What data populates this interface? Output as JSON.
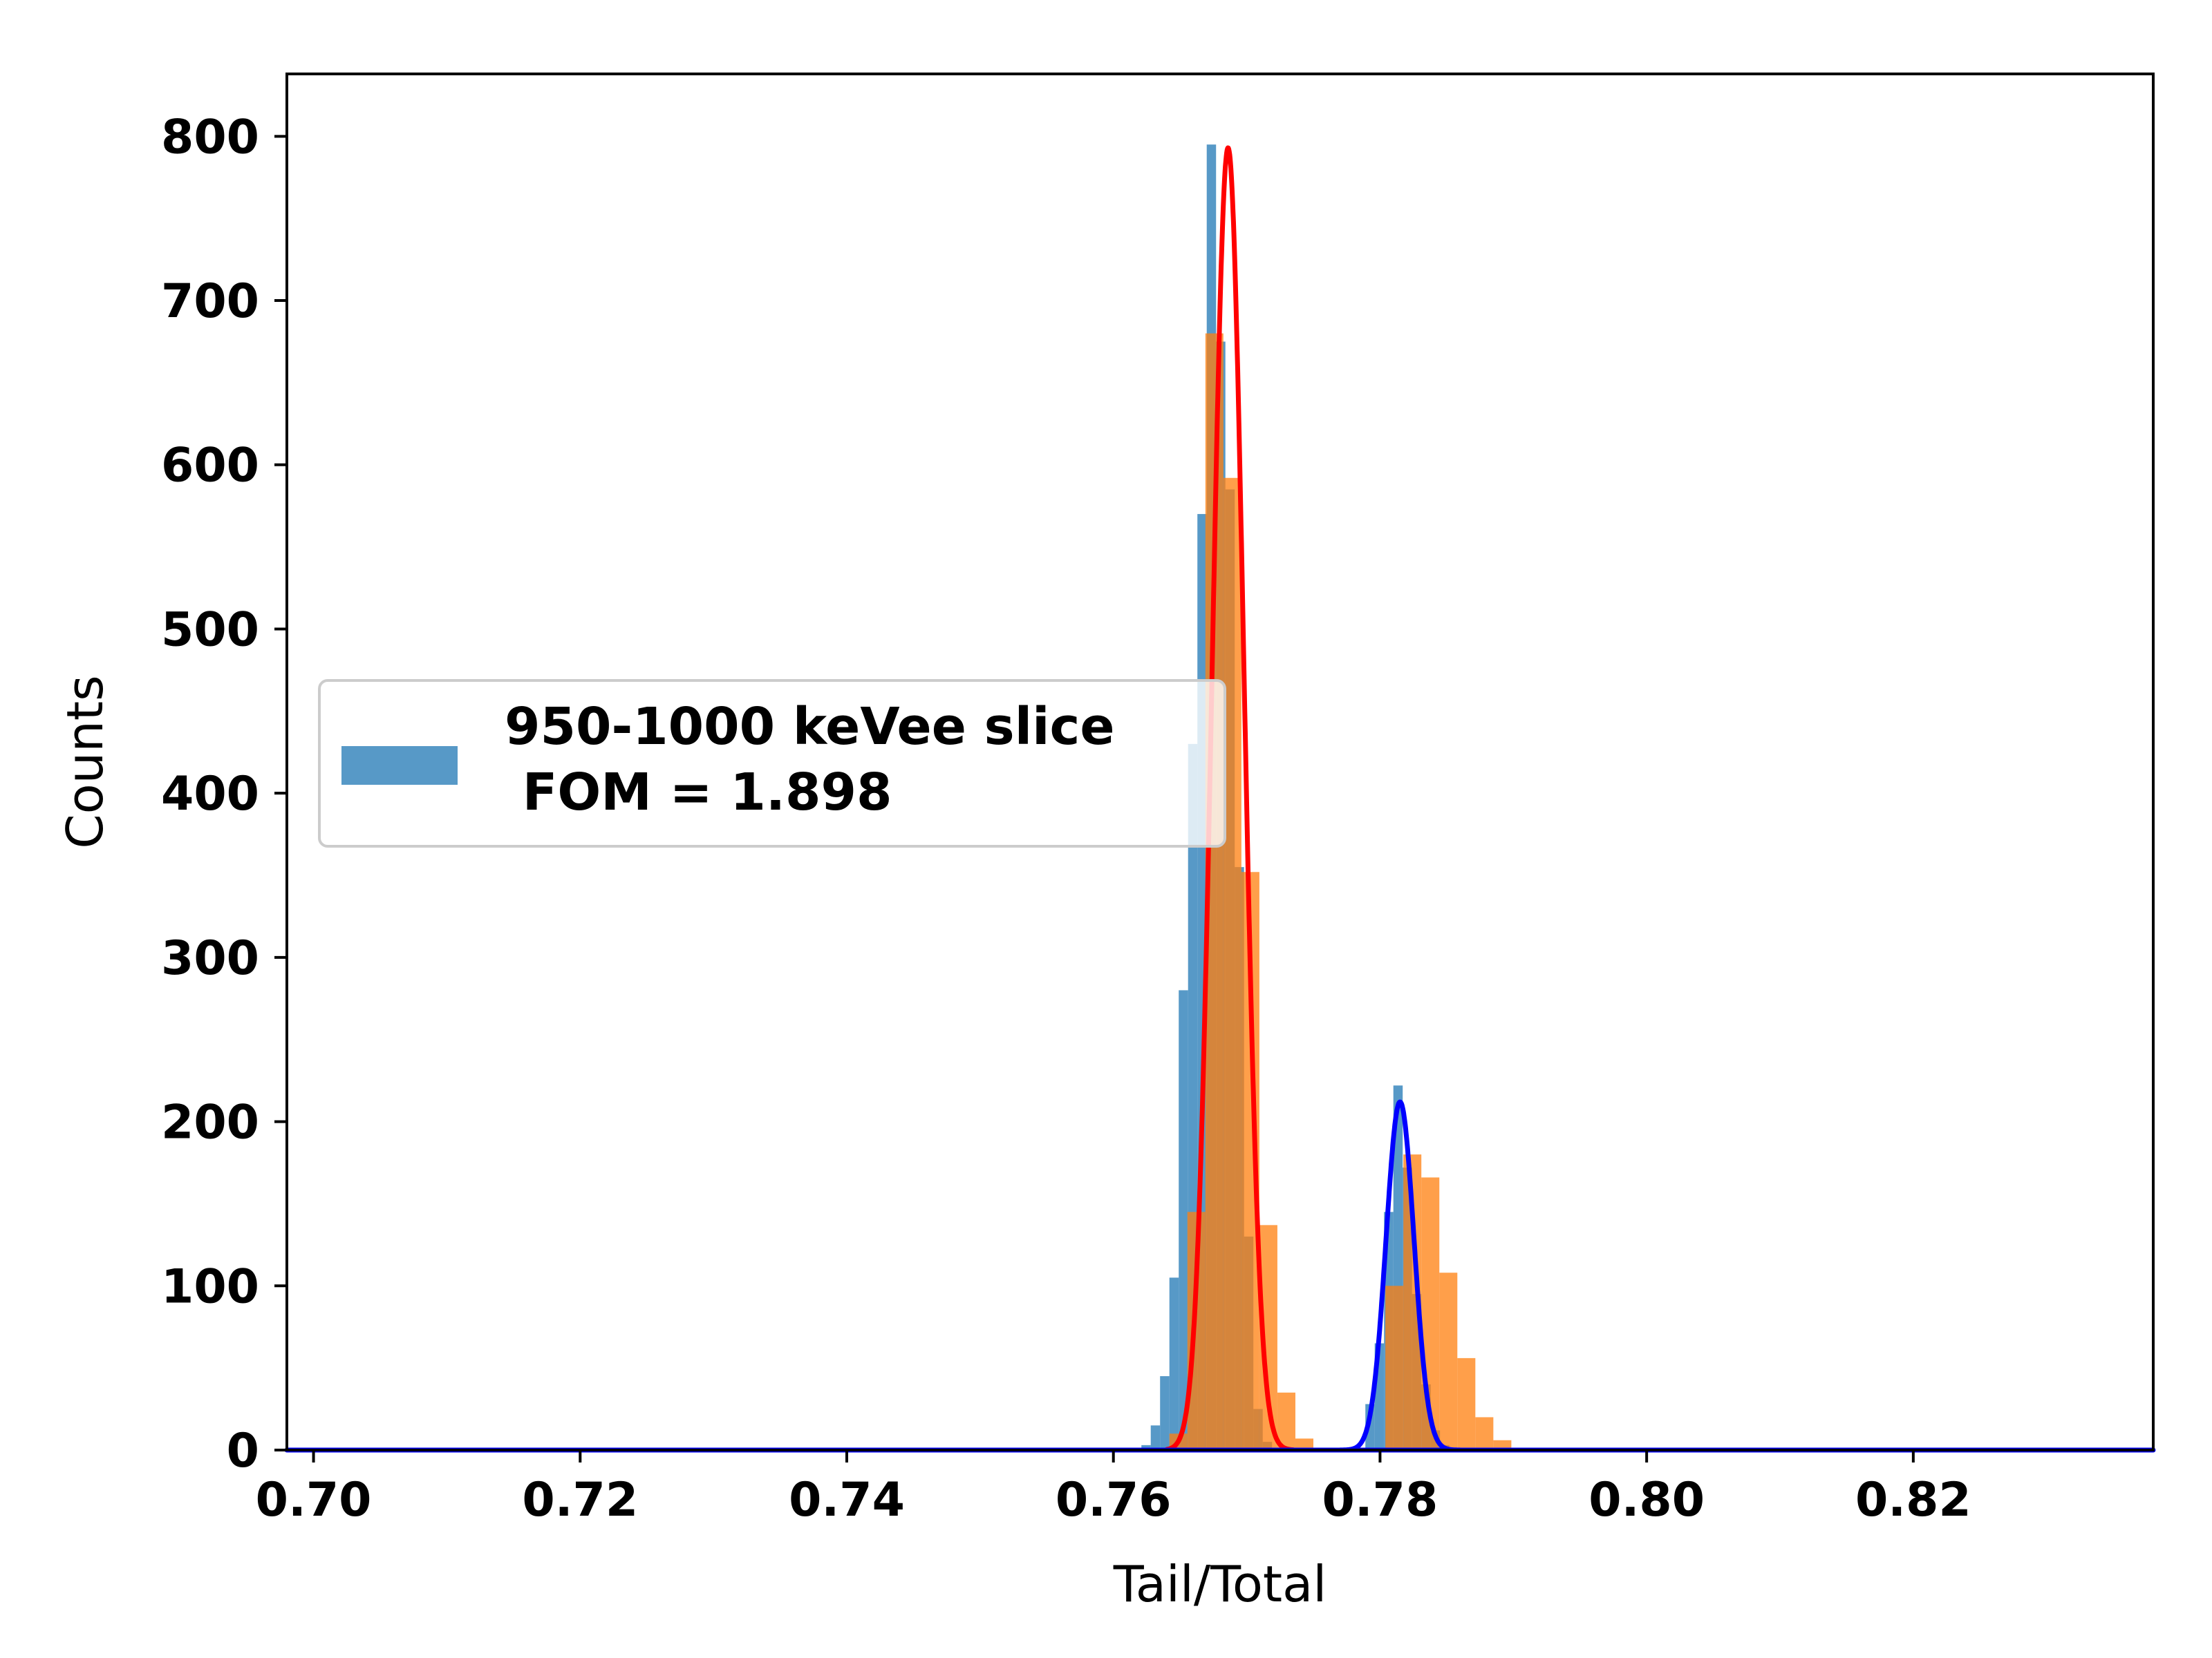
{
  "chart_data": {
    "type": "bar",
    "title": "",
    "xlabel": "Tail/Total",
    "ylabel": "Counts",
    "xlim": [
      0.698,
      0.838
    ],
    "ylim": [
      0,
      838
    ],
    "xticks": [
      0.7,
      0.72,
      0.74,
      0.76,
      0.78,
      0.8,
      0.82
    ],
    "xtick_labels": [
      "0.70",
      "0.72",
      "0.74",
      "0.76",
      "0.78",
      "0.80",
      "0.82"
    ],
    "yticks": [
      0,
      100,
      200,
      300,
      400,
      500,
      600,
      700,
      800
    ],
    "ytick_labels": [
      "0",
      "100",
      "200",
      "300",
      "400",
      "500",
      "600",
      "700",
      "800"
    ],
    "grid": false,
    "legend": {
      "position": "center-left",
      "entries": [
        {
          "label": "950-1000 keVee slice\n FOM = 1.898",
          "color": "#1f77b4"
        }
      ]
    },
    "histograms": [
      {
        "name": "950-1000 keVee slice\n FOM = 1.898",
        "color": "#1f77b4",
        "opacity": 0.75,
        "bin_width": 0.0007,
        "bins": [
          [
            0.7621,
            3
          ],
          [
            0.7628,
            15
          ],
          [
            0.7635,
            45
          ],
          [
            0.7642,
            105
          ],
          [
            0.7649,
            280
          ],
          [
            0.7656,
            430
          ],
          [
            0.7663,
            570
          ],
          [
            0.767,
            795
          ],
          [
            0.7677,
            675
          ],
          [
            0.7684,
            585
          ],
          [
            0.7691,
            355
          ],
          [
            0.7698,
            130
          ],
          [
            0.7705,
            25
          ],
          [
            0.7712,
            5
          ],
          [
            0.7789,
            28
          ],
          [
            0.7796,
            65
          ],
          [
            0.7803,
            145
          ],
          [
            0.781,
            222
          ],
          [
            0.7817,
            172
          ],
          [
            0.7824,
            95
          ],
          [
            0.7831,
            40
          ],
          [
            0.7838,
            12
          ],
          [
            0.7845,
            3
          ]
        ]
      },
      {
        "name": "",
        "color": "#ff7f0e",
        "opacity": 0.75,
        "bin_width": 0.00135,
        "bins": [
          [
            0.7642,
            10
          ],
          [
            0.76555,
            145
          ],
          [
            0.7669,
            680
          ],
          [
            0.76825,
            592
          ],
          [
            0.7696,
            352
          ],
          [
            0.77095,
            137
          ],
          [
            0.7723,
            35
          ],
          [
            0.77365,
            7
          ],
          [
            0.7804,
            100
          ],
          [
            0.78175,
            180
          ],
          [
            0.7831,
            166
          ],
          [
            0.78445,
            108
          ],
          [
            0.7858,
            56
          ],
          [
            0.78715,
            20
          ],
          [
            0.7885,
            6
          ]
        ]
      }
    ],
    "fits": [
      {
        "type": "gaussian",
        "color": "#ff0000",
        "amplitude": 793,
        "mean": 0.7686,
        "sigma": 0.00118,
        "range": [
          0.764,
          0.7735
        ]
      },
      {
        "type": "gaussian",
        "color": "#0000ff",
        "amplitude": 212,
        "mean": 0.7815,
        "sigma": 0.00105,
        "range": [
          0.777,
          0.786
        ]
      },
      {
        "type": "baseline",
        "color": "#0000ff",
        "value": 0,
        "range": [
          0.698,
          0.838
        ]
      }
    ]
  }
}
